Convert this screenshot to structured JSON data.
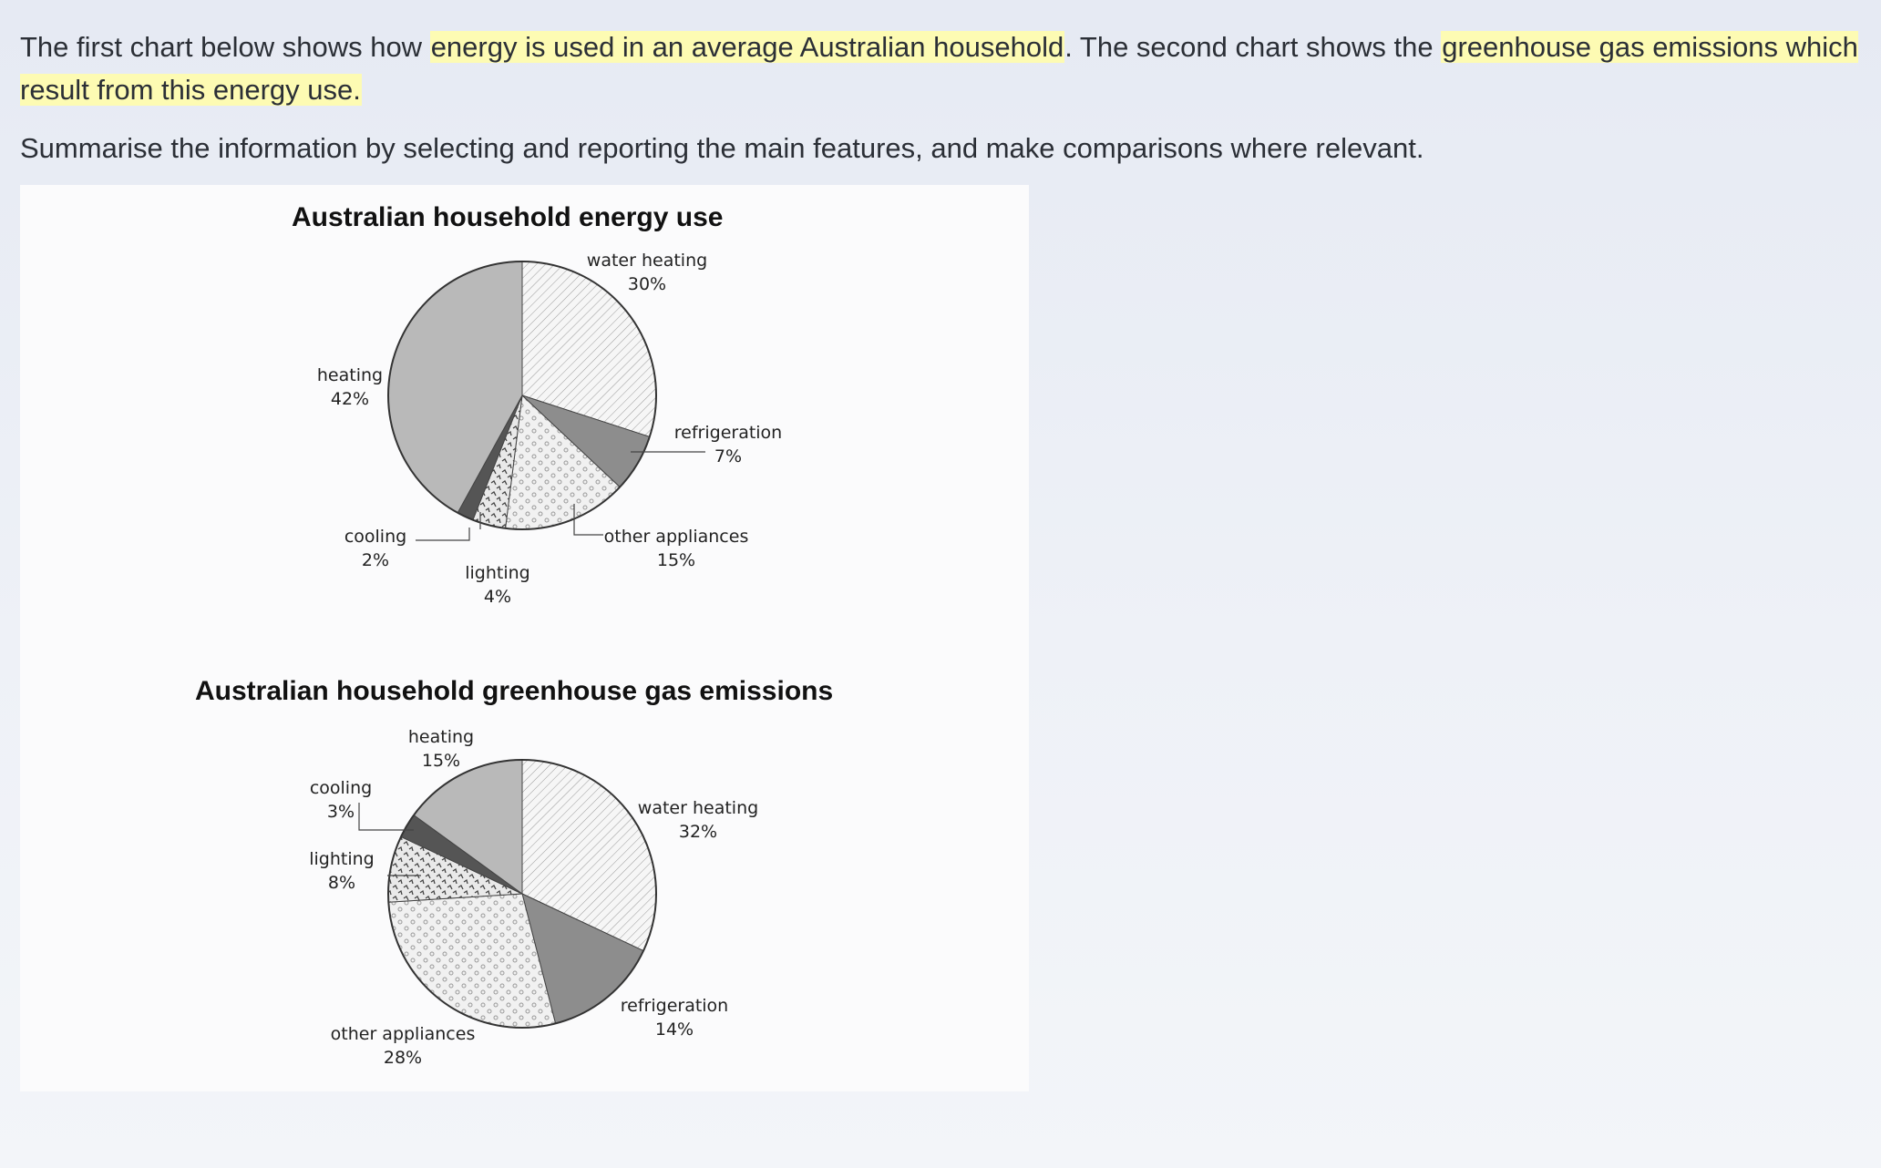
{
  "prompt": {
    "p1_a": "The first chart below shows how ",
    "p1_hl1": "energy is used in an average Australian household",
    "p1_b": ". The second chart shows the ",
    "p1_hl2": "greenhouse gas emissions which result from this energy use.",
    "p2": "Summarise the information by selecting and reporting the main features, and make comparisons where relevant."
  },
  "colors": {
    "highlight": "#fdfbb3",
    "text": "#2b2f36",
    "figure_bg": "#fbfbfc"
  },
  "chart_data": [
    {
      "type": "pie",
      "title": "Australian household energy use",
      "slices": [
        {
          "name": "water heating",
          "value": 30,
          "label": "30%",
          "pattern": "hatch"
        },
        {
          "name": "refrigeration",
          "value": 7,
          "label": "7%",
          "pattern": "dark"
        },
        {
          "name": "other appliances",
          "value": 15,
          "label": "15%",
          "pattern": "dots"
        },
        {
          "name": "lighting",
          "value": 4,
          "label": "4%",
          "pattern": "squiggle"
        },
        {
          "name": "cooling",
          "value": 2,
          "label": "2%",
          "pattern": "darkest"
        },
        {
          "name": "heating",
          "value": 42,
          "label": "42%",
          "pattern": "grey"
        }
      ]
    },
    {
      "type": "pie",
      "title": "Australian household greenhouse gas emissions",
      "slices": [
        {
          "name": "water heating",
          "value": 32,
          "label": "32%",
          "pattern": "hatch"
        },
        {
          "name": "refrigeration",
          "value": 14,
          "label": "14%",
          "pattern": "dark"
        },
        {
          "name": "other appliances",
          "value": 28,
          "label": "28%",
          "pattern": "dots"
        },
        {
          "name": "lighting",
          "value": 8,
          "label": "8%",
          "pattern": "squiggle"
        },
        {
          "name": "cooling",
          "value": 3,
          "label": "3%",
          "pattern": "darkest"
        },
        {
          "name": "heating",
          "value": 15,
          "label": "15%",
          "pattern": "grey"
        }
      ]
    }
  ]
}
